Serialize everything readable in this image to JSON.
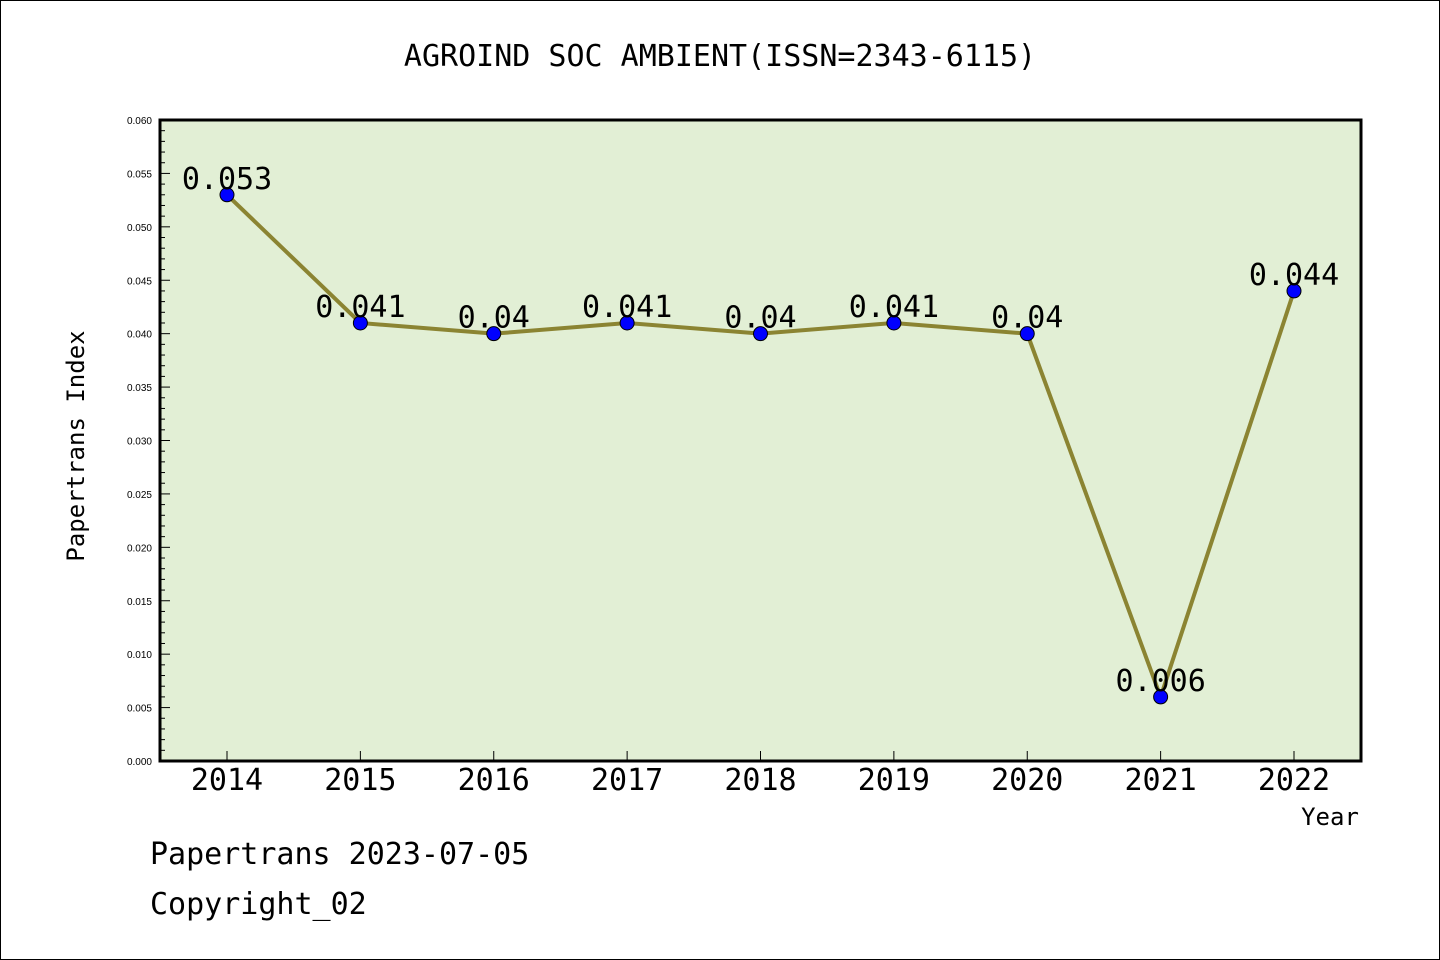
{
  "chart_data": {
    "type": "line",
    "title": "AGROIND SOC AMBIENT(ISSN=2343-6115)",
    "xlabel": "Year",
    "ylabel": "Papertrans Index",
    "categories": [
      "2014",
      "2015",
      "2016",
      "2017",
      "2018",
      "2019",
      "2020",
      "2021",
      "2022"
    ],
    "series": [
      {
        "values": [
          0.053,
          0.041,
          0.04,
          0.041,
          0.04,
          0.041,
          0.04,
          0.006,
          0.044
        ],
        "data_labels": [
          "0.053",
          "0.041",
          "0.04",
          "0.041",
          "0.04",
          "0.041",
          "0.04",
          "0.006",
          "0.044"
        ]
      }
    ],
    "ylim": [
      0,
      0.06
    ],
    "yticks": [
      "0.000",
      "0.005",
      "0.010",
      "0.015",
      "0.020",
      "0.025",
      "0.030",
      "0.035",
      "0.040",
      "0.045",
      "0.050",
      "0.055",
      "0.060"
    ],
    "grid": false,
    "colors": {
      "plot_background": "#e2efd5",
      "line": "#8b8432",
      "marker": "#0000ff"
    }
  },
  "footer": {
    "source": "Papertrans 2023-07-05",
    "copyright": "Copyright_02"
  }
}
